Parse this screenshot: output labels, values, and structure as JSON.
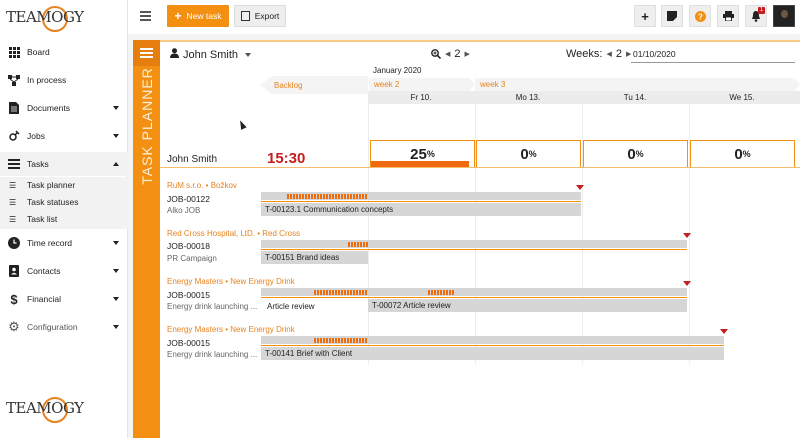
{
  "brand": {
    "logo_text": "TEAMOGY",
    "accent": "#f39012"
  },
  "sidebar": {
    "items": [
      {
        "label": "Board",
        "icon": "grid-icon"
      },
      {
        "label": "In process",
        "icon": "flow-icon"
      },
      {
        "label": "Documents",
        "icon": "document-icon"
      },
      {
        "label": "Jobs",
        "icon": "jobs-icon"
      },
      {
        "label": "Tasks",
        "icon": "tasks-icon"
      },
      {
        "label": "Time record",
        "icon": "clock-icon"
      },
      {
        "label": "Contacts",
        "icon": "contact-card-icon"
      },
      {
        "label": "Financial",
        "icon": "dollar-icon"
      },
      {
        "label": "Configuration",
        "icon": "gear-icon"
      }
    ],
    "sub_items": [
      {
        "label": "Task planner"
      },
      {
        "label": "Task statuses"
      },
      {
        "label": "Task list"
      }
    ]
  },
  "toolbar": {
    "new_task_label": "New task",
    "export_label": "Export",
    "notification_count": "1"
  },
  "planner": {
    "vertical_title": "TASK PLANNER",
    "user_name": "John Smith",
    "zoom_value": "2",
    "weeks_label": "Weeks:",
    "weeks_value": "2",
    "date_value": "01/10/2020",
    "month_label": "January 2020",
    "backlog_label": "Backlog",
    "week_labels": [
      "week 2",
      "week 3"
    ],
    "days": [
      "Fr 10.",
      "Mo 13.",
      "Tu 14.",
      "We 15."
    ],
    "summary": {
      "name": "John Smith",
      "time": "15:30",
      "utilization": [
        {
          "value": "25",
          "unit": "%",
          "fill": 0.95
        },
        {
          "value": "0",
          "unit": "%",
          "fill": 0
        },
        {
          "value": "0",
          "unit": "%",
          "fill": 0
        },
        {
          "value": "0",
          "unit": "%",
          "fill": 0
        }
      ]
    },
    "jobs": [
      {
        "client": "RuM s.r.o. • Božkov",
        "code": "JOB-00122",
        "desc": "Alko JOB",
        "task": "T-00123.1 Communication concepts",
        "extra_label": ""
      },
      {
        "client": "Red Cross Hospital, LtD. • Red Cross",
        "code": "JOB-00018",
        "desc": "PR Campaign",
        "task": "T-00151 Brand ideas",
        "extra_label": ""
      },
      {
        "client": "Energy Masters • New Energy Drink",
        "code": "JOB-00015",
        "desc": "Energy drink launching ...",
        "task": "T-00072 Article review",
        "extra_label": "Article review"
      },
      {
        "client": "Energy Masters • New Energy Drink",
        "code": "JOB-00015",
        "desc": "Energy drink launching ...",
        "task": "T-00141 Brief with Client",
        "extra_label": ""
      }
    ]
  }
}
